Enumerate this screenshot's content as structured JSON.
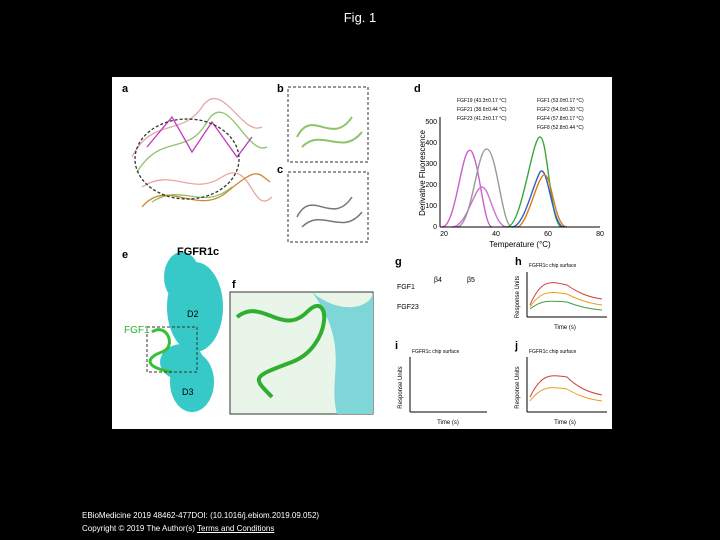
{
  "header": {
    "title": "Fig. 1"
  },
  "figure": {
    "panels": [
      "a",
      "b",
      "c",
      "d",
      "e",
      "f",
      "g",
      "h",
      "i",
      "j"
    ],
    "panel_d": {
      "y_label": "Derivative Fluorescence",
      "x_label": "Temperature (°C)",
      "x_ticks": [
        "20",
        "40",
        "60",
        "80"
      ],
      "y_ticks": [
        "0",
        "100",
        "200",
        "300",
        "400",
        "500"
      ],
      "legend": [
        "FGF19 (43.3±0.17 °C)",
        "FGF21 (38.6±0.44 °C)",
        "FGF23 (41.2±0.17 °C)",
        "FGF1 (53.0±0.17 °C)",
        "FGF2 (54.0±0.20 °C)",
        "FGF4 (57.8±0.17 °C)",
        "FGF8 (52.8±0.44 °C)"
      ]
    },
    "panel_e": {
      "receptor": "FGFR1c",
      "ligand": "FGF1",
      "domain_top": "D2",
      "domain_bottom": "D3"
    },
    "panel_g": {
      "seq_label_1": "FGF1",
      "seq_label_2": "FGF23",
      "motif_1": "β4",
      "motif_2": "β5"
    },
    "panel_h": {
      "title": "FGFR1c chip surface",
      "x_label": "Time (s)",
      "y_label": "Response Units"
    },
    "panel_i": {
      "title": "FGFR1c chip surface",
      "x_label": "Time (s)",
      "y_label": "Response Units"
    },
    "panel_j": {
      "title": "FGFR1c chip surface",
      "x_label": "Time (s)",
      "y_label": "Response Units"
    }
  },
  "footer": {
    "citation": "EBioMedicine 2019 48462-477DOI: (10.1016/j.ebiom.2019.09.052)",
    "copyright": "Copyright © 2019 The Author(s)",
    "link": "Terms and Conditions"
  }
}
